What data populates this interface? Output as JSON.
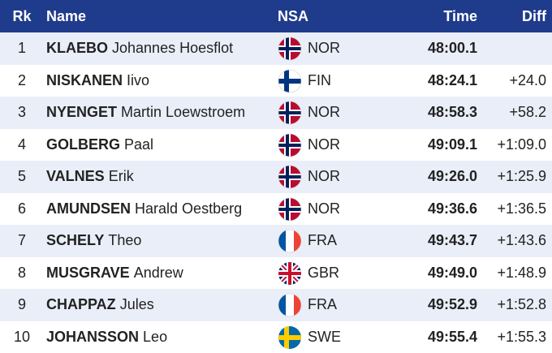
{
  "table": {
    "headers": {
      "rank": "Rk",
      "name": "Name",
      "nsa": "NSA",
      "time": "Time",
      "diff": "Diff"
    },
    "rows": [
      {
        "rank": 1,
        "surname": "KLAEBO",
        "given": "Johannes Hoesflot",
        "nsa": "NOR",
        "time": "48:00.1"
      },
      {
        "rank": 2,
        "surname": "NISKANEN",
        "given": "Iivo",
        "nsa": "FIN",
        "time": "48:24.1",
        "diff": "+24.0"
      },
      {
        "rank": 3,
        "surname": "NYENGET",
        "given": "Martin Loewstroem",
        "nsa": "NOR",
        "time": "48:58.3",
        "diff": "+58.2"
      },
      {
        "rank": 4,
        "surname": "GOLBERG",
        "given": "Paal",
        "nsa": "NOR",
        "time": "49:09.1",
        "diff": "+1:09.0"
      },
      {
        "rank": 5,
        "surname": "VALNES",
        "given": "Erik",
        "nsa": "NOR",
        "time": "49:26.0",
        "diff": "+1:25.9"
      },
      {
        "rank": 6,
        "surname": "AMUNDSEN",
        "given": "Harald Oestberg",
        "nsa": "NOR",
        "time": "49:36.6",
        "diff": "+1:36.5"
      },
      {
        "rank": 7,
        "surname": "SCHELY",
        "given": "Theo",
        "nsa": "FRA",
        "time": "49:43.7",
        "diff": "+1:43.6"
      },
      {
        "rank": 8,
        "surname": "MUSGRAVE",
        "given": "Andrew",
        "nsa": "GBR",
        "time": "49:49.0",
        "diff": "+1:48.9"
      },
      {
        "rank": 9,
        "surname": "CHAPPAZ",
        "given": "Jules",
        "nsa": "FRA",
        "time": "49:52.9",
        "diff": "+1:52.8"
      },
      {
        "rank": 10,
        "surname": "JOHANSSON",
        "given": "Leo",
        "nsa": "SWE",
        "time": "49:55.4",
        "diff": "+1:55.3"
      }
    ]
  }
}
